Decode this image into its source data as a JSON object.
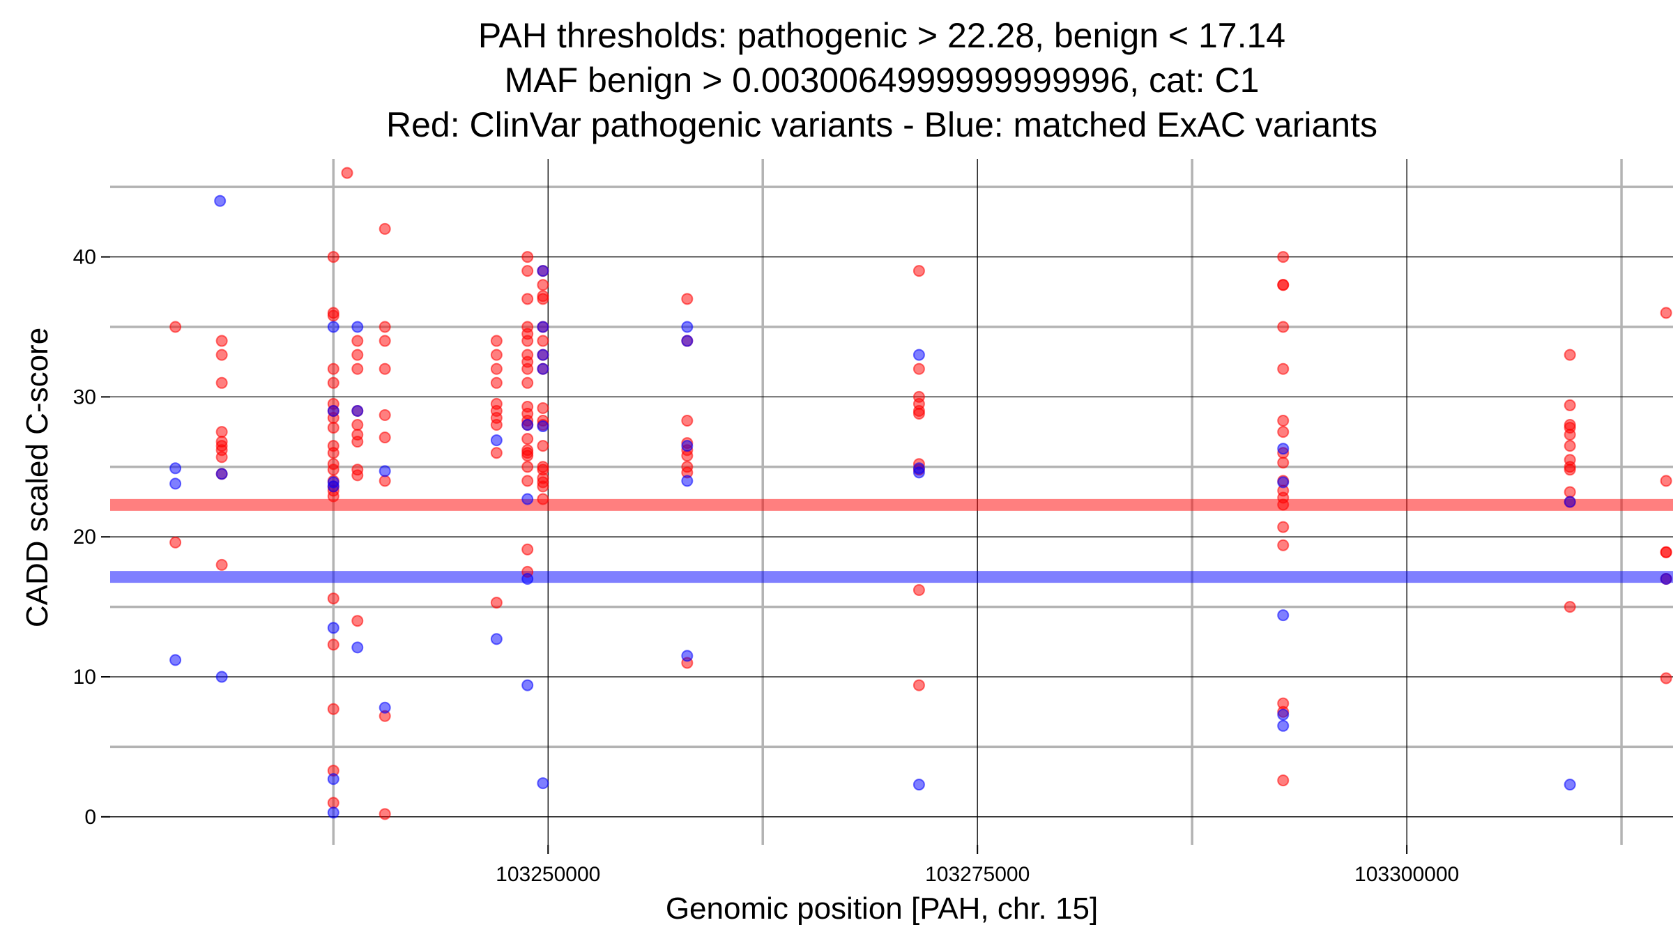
{
  "chart_data": {
    "type": "scatter",
    "title": [
      "PAH thresholds: pathogenic > 22.28, benign < 17.14",
      "MAF benign > 0.0030064999999999996, cat: C1",
      "Red: ClinVar pathogenic variants - Blue: matched ExAC variants"
    ],
    "xlabel": "Genomic position [PAH, chr. 15]",
    "ylabel": "CADD scaled C-score",
    "xlim": [
      103224500,
      103315500
    ],
    "ylim": [
      -2,
      47
    ],
    "x_ticks": [
      103250000,
      103275000,
      103300000
    ],
    "x_tick_labels": [
      "103250000",
      "103275000",
      "103300000"
    ],
    "x_minor_ticks": [
      103237500,
      103262500,
      103287500,
      103312500
    ],
    "y_ticks": [
      0,
      10,
      20,
      30,
      40
    ],
    "y_tick_labels": [
      "0",
      "10",
      "20",
      "30",
      "40"
    ],
    "y_minor_ticks": [
      5,
      15,
      25,
      35,
      45
    ],
    "grid": true,
    "thresholds": [
      {
        "name": "pathogenic",
        "value": 22.28,
        "color": "#ff0000"
      },
      {
        "name": "benign",
        "value": 17.14,
        "color": "#0000ff"
      }
    ],
    "series": [
      {
        "name": "ClinVar pathogenic variants",
        "color": "#ff0000",
        "points": [
          [
            103228300,
            35.0
          ],
          [
            103228300,
            19.6
          ],
          [
            103231000,
            34.0
          ],
          [
            103231000,
            33.0
          ],
          [
            103231000,
            31.0
          ],
          [
            103231000,
            27.5
          ],
          [
            103231000,
            26.8
          ],
          [
            103231000,
            26.5
          ],
          [
            103231000,
            26.2
          ],
          [
            103231000,
            25.7
          ],
          [
            103231000,
            24.5
          ],
          [
            103231000,
            18.0
          ],
          [
            103237500,
            40.0
          ],
          [
            103237500,
            36.0
          ],
          [
            103237500,
            35.8
          ],
          [
            103237500,
            32.0
          ],
          [
            103237500,
            31.0
          ],
          [
            103237500,
            29.5
          ],
          [
            103237500,
            29.0
          ],
          [
            103237500,
            28.5
          ],
          [
            103237500,
            27.8
          ],
          [
            103237500,
            26.5
          ],
          [
            103237500,
            26.0
          ],
          [
            103237500,
            25.2
          ],
          [
            103237500,
            24.8
          ],
          [
            103237500,
            24.0
          ],
          [
            103237500,
            23.6
          ],
          [
            103237500,
            23.3
          ],
          [
            103237500,
            22.9
          ],
          [
            103237500,
            15.6
          ],
          [
            103237500,
            12.3
          ],
          [
            103237500,
            7.7
          ],
          [
            103237500,
            3.3
          ],
          [
            103237500,
            1.0
          ],
          [
            103238900,
            34.0
          ],
          [
            103238900,
            33.0
          ],
          [
            103238900,
            32.0
          ],
          [
            103238900,
            29.0
          ],
          [
            103238900,
            28.0
          ],
          [
            103238900,
            27.3
          ],
          [
            103238900,
            26.8
          ],
          [
            103238900,
            24.8
          ],
          [
            103238900,
            24.4
          ],
          [
            103238900,
            14.0
          ],
          [
            103238300,
            46.0
          ],
          [
            103240500,
            42.0
          ],
          [
            103240500,
            35.0
          ],
          [
            103240500,
            34.0
          ],
          [
            103240500,
            32.0
          ],
          [
            103240500,
            28.7
          ],
          [
            103240500,
            27.1
          ],
          [
            103240500,
            24.0
          ],
          [
            103240500,
            7.2
          ],
          [
            103240500,
            0.2
          ],
          [
            103247000,
            34.0
          ],
          [
            103247000,
            33.0
          ],
          [
            103247000,
            32.0
          ],
          [
            103247000,
            31.0
          ],
          [
            103247000,
            29.5
          ],
          [
            103247000,
            29.0
          ],
          [
            103247000,
            28.5
          ],
          [
            103247000,
            28.0
          ],
          [
            103247000,
            26.0
          ],
          [
            103247000,
            15.3
          ],
          [
            103248800,
            40.0
          ],
          [
            103248800,
            39.0
          ],
          [
            103248800,
            37.0
          ],
          [
            103248800,
            35.0
          ],
          [
            103248800,
            34.5
          ],
          [
            103248800,
            34.0
          ],
          [
            103248800,
            33.0
          ],
          [
            103248800,
            32.5
          ],
          [
            103248800,
            32.0
          ],
          [
            103248800,
            31.0
          ],
          [
            103248800,
            29.3
          ],
          [
            103248800,
            28.8
          ],
          [
            103248800,
            28.3
          ],
          [
            103248800,
            28.0
          ],
          [
            103248800,
            27.0
          ],
          [
            103248800,
            26.2
          ],
          [
            103248800,
            26.0
          ],
          [
            103248800,
            25.8
          ],
          [
            103248800,
            25.0
          ],
          [
            103248800,
            24.0
          ],
          [
            103248800,
            19.1
          ],
          [
            103248800,
            17.5
          ],
          [
            103249700,
            39.0
          ],
          [
            103249700,
            38.0
          ],
          [
            103249700,
            37.2
          ],
          [
            103249700,
            37.0
          ],
          [
            103249700,
            35.0
          ],
          [
            103249700,
            34.0
          ],
          [
            103249700,
            33.0
          ],
          [
            103249700,
            32.0
          ],
          [
            103249700,
            29.2
          ],
          [
            103249700,
            28.3
          ],
          [
            103249700,
            28.0
          ],
          [
            103249700,
            26.5
          ],
          [
            103249700,
            25.0
          ],
          [
            103249700,
            24.8
          ],
          [
            103249700,
            24.2
          ],
          [
            103249700,
            23.9
          ],
          [
            103249700,
            23.6
          ],
          [
            103249700,
            22.7
          ],
          [
            103258100,
            37.0
          ],
          [
            103258100,
            34.0
          ],
          [
            103258100,
            28.3
          ],
          [
            103258100,
            26.7
          ],
          [
            103258100,
            26.2
          ],
          [
            103258100,
            25.8
          ],
          [
            103258100,
            25.0
          ],
          [
            103258100,
            24.6
          ],
          [
            103258100,
            11.0
          ],
          [
            103271600,
            39.0
          ],
          [
            103271600,
            32.0
          ],
          [
            103271600,
            30.0
          ],
          [
            103271600,
            29.5
          ],
          [
            103271600,
            29.0
          ],
          [
            103271600,
            28.8
          ],
          [
            103271600,
            25.2
          ],
          [
            103271600,
            24.8
          ],
          [
            103271600,
            16.2
          ],
          [
            103271600,
            9.4
          ],
          [
            103292800,
            40.0
          ],
          [
            103292800,
            38.0
          ],
          [
            103292800,
            38.0
          ],
          [
            103292800,
            35.0
          ],
          [
            103292800,
            32.0
          ],
          [
            103292800,
            28.3
          ],
          [
            103292800,
            27.5
          ],
          [
            103292800,
            26.0
          ],
          [
            103292800,
            25.3
          ],
          [
            103292800,
            24.0
          ],
          [
            103292800,
            23.3
          ],
          [
            103292800,
            22.8
          ],
          [
            103292800,
            22.3
          ],
          [
            103292800,
            20.7
          ],
          [
            103292800,
            19.4
          ],
          [
            103292800,
            8.1
          ],
          [
            103292800,
            7.5
          ],
          [
            103292800,
            2.6
          ],
          [
            103309500,
            33.0
          ],
          [
            103309500,
            29.4
          ],
          [
            103309500,
            28.0
          ],
          [
            103309500,
            27.8
          ],
          [
            103309500,
            27.3
          ],
          [
            103309500,
            26.5
          ],
          [
            103309500,
            25.5
          ],
          [
            103309500,
            25.0
          ],
          [
            103309500,
            24.8
          ],
          [
            103309500,
            23.2
          ],
          [
            103309500,
            22.5
          ],
          [
            103309500,
            15.0
          ],
          [
            103315100,
            36.0
          ],
          [
            103315100,
            24.0
          ],
          [
            103315100,
            18.9
          ],
          [
            103315100,
            18.9
          ],
          [
            103315100,
            17.0
          ],
          [
            103315100,
            9.9
          ]
        ]
      },
      {
        "name": "matched ExAC variants",
        "color": "#0000ff",
        "points": [
          [
            103230900,
            44.0
          ],
          [
            103228300,
            24.9
          ],
          [
            103228300,
            23.8
          ],
          [
            103228300,
            11.2
          ],
          [
            103231000,
            10.0
          ],
          [
            103231000,
            24.5
          ],
          [
            103237500,
            35.0
          ],
          [
            103237500,
            29.0
          ],
          [
            103237500,
            23.9
          ],
          [
            103237500,
            23.6
          ],
          [
            103237500,
            13.5
          ],
          [
            103237500,
            2.7
          ],
          [
            103237500,
            0.3
          ],
          [
            103238900,
            35.0
          ],
          [
            103238900,
            29.0
          ],
          [
            103238900,
            12.1
          ],
          [
            103240500,
            24.7
          ],
          [
            103240500,
            7.8
          ],
          [
            103247000,
            26.9
          ],
          [
            103247000,
            12.7
          ],
          [
            103248800,
            28.0
          ],
          [
            103248800,
            22.7
          ],
          [
            103248800,
            17.0
          ],
          [
            103248800,
            9.4
          ],
          [
            103249700,
            39.0
          ],
          [
            103249700,
            35.0
          ],
          [
            103249700,
            33.0
          ],
          [
            103249700,
            32.0
          ],
          [
            103249700,
            27.9
          ],
          [
            103249700,
            2.4
          ],
          [
            103258100,
            35.0
          ],
          [
            103258100,
            34.0
          ],
          [
            103258100,
            24.0
          ],
          [
            103258100,
            26.5
          ],
          [
            103258100,
            11.5
          ],
          [
            103271600,
            33.0
          ],
          [
            103271600,
            24.6
          ],
          [
            103271600,
            24.9
          ],
          [
            103271600,
            2.3
          ],
          [
            103292800,
            26.3
          ],
          [
            103292800,
            23.9
          ],
          [
            103292800,
            14.4
          ],
          [
            103292800,
            7.3
          ],
          [
            103292800,
            6.5
          ],
          [
            103309500,
            22.5
          ],
          [
            103309500,
            2.3
          ],
          [
            103315100,
            17.0
          ]
        ]
      }
    ]
  }
}
